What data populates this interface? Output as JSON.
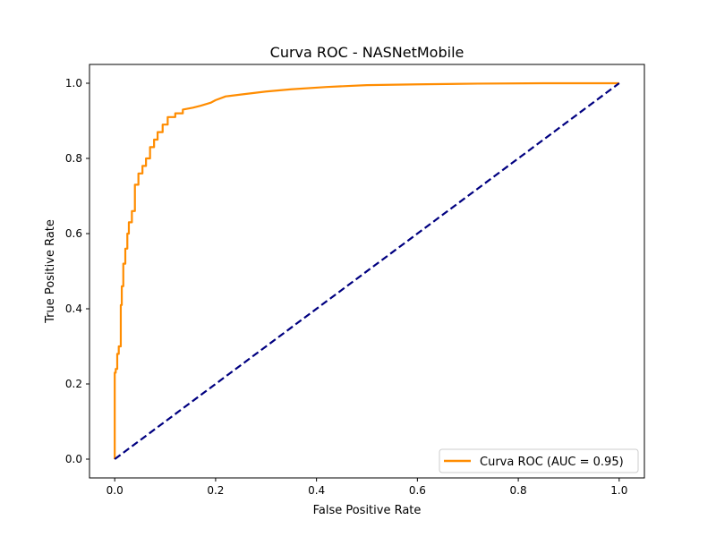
{
  "chart_data": {
    "type": "line",
    "title": "Curva ROC - NASNetMobile",
    "xlabel": "False Positive Rate",
    "ylabel": "True Positive Rate",
    "xlim": [
      -0.05,
      1.05
    ],
    "ylim": [
      -0.05,
      1.05
    ],
    "xticks": [
      0.0,
      0.2,
      0.4,
      0.6,
      0.8,
      1.0
    ],
    "yticks": [
      0.0,
      0.2,
      0.4,
      0.6,
      0.8,
      1.0
    ],
    "xtick_labels": [
      "0.0",
      "0.2",
      "0.4",
      "0.6",
      "0.8",
      "1.0"
    ],
    "ytick_labels": [
      "0.0",
      "0.2",
      "0.4",
      "0.6",
      "0.8",
      "1.0"
    ],
    "grid": false,
    "legend_position": "lower-right",
    "series": [
      {
        "name": "Curva ROC (AUC = 0.95)",
        "color": "#ff8c00",
        "style": "solid",
        "x": [
          0.0,
          0.0,
          0.002,
          0.002,
          0.005,
          0.005,
          0.008,
          0.008,
          0.012,
          0.012,
          0.014,
          0.014,
          0.017,
          0.017,
          0.021,
          0.021,
          0.025,
          0.025,
          0.028,
          0.028,
          0.034,
          0.034,
          0.04,
          0.04,
          0.047,
          0.047,
          0.055,
          0.055,
          0.062,
          0.062,
          0.07,
          0.07,
          0.078,
          0.078,
          0.085,
          0.085,
          0.095,
          0.095,
          0.105,
          0.105,
          0.12,
          0.12,
          0.135,
          0.135,
          0.155,
          0.17,
          0.19,
          0.2,
          0.22,
          0.25,
          0.3,
          0.35,
          0.42,
          0.5,
          0.6,
          0.72,
          0.85,
          1.0
        ],
        "y": [
          0.0,
          0.23,
          0.23,
          0.24,
          0.24,
          0.28,
          0.28,
          0.3,
          0.3,
          0.41,
          0.41,
          0.46,
          0.46,
          0.52,
          0.52,
          0.56,
          0.56,
          0.6,
          0.6,
          0.63,
          0.63,
          0.66,
          0.66,
          0.73,
          0.73,
          0.76,
          0.76,
          0.78,
          0.78,
          0.8,
          0.8,
          0.83,
          0.83,
          0.85,
          0.85,
          0.87,
          0.87,
          0.89,
          0.89,
          0.91,
          0.91,
          0.92,
          0.92,
          0.93,
          0.935,
          0.94,
          0.948,
          0.955,
          0.965,
          0.97,
          0.978,
          0.984,
          0.99,
          0.995,
          0.997,
          0.999,
          1.0,
          1.0
        ]
      },
      {
        "name": "",
        "color": "#000080",
        "style": "dashed",
        "x": [
          0.0,
          1.0
        ],
        "y": [
          0.0,
          1.0
        ]
      }
    ]
  }
}
